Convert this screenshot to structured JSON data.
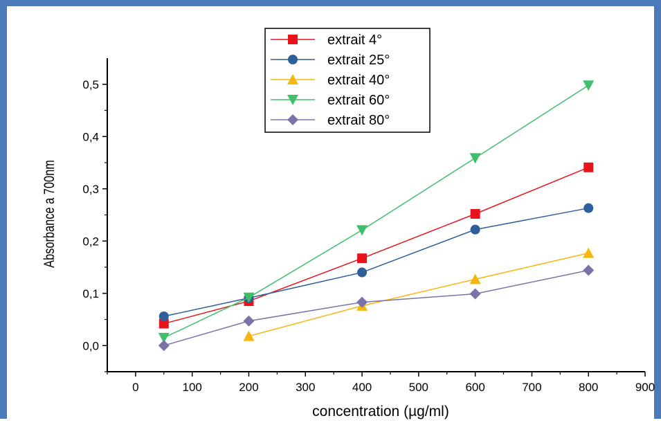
{
  "chart_data": {
    "type": "line",
    "title": "",
    "xlabel": "concentration (µg/ml)",
    "ylabel": "Absorbance a 700nm",
    "xlim": [
      -50,
      900
    ],
    "ylim": [
      -0.05,
      0.55
    ],
    "xticks": [
      0,
      100,
      200,
      300,
      400,
      500,
      600,
      700,
      800,
      900
    ],
    "xtick_labels": [
      "0",
      "100",
      "200",
      "300",
      "400",
      "500",
      "600",
      "700",
      "800",
      "900"
    ],
    "yticks": [
      0,
      0.1,
      0.2,
      0.3,
      0.4,
      0.5
    ],
    "ytick_labels": [
      "0,0",
      "0,1",
      "0,2",
      "0,3",
      "0,4",
      "0,5"
    ],
    "grid": false,
    "legend_position": "top-center",
    "series": [
      {
        "name": "extrait 4°",
        "color": "#e8141c",
        "marker": "square",
        "x": [
          50,
          200,
          400,
          600,
          800
        ],
        "y": [
          0.042,
          0.085,
          0.167,
          0.252,
          0.341
        ]
      },
      {
        "name": "extrait 25°",
        "color": "#2f5f9a",
        "marker": "circle",
        "x": [
          50,
          200,
          400,
          600,
          800
        ],
        "y": [
          0.056,
          0.091,
          0.14,
          0.222,
          0.263
        ]
      },
      {
        "name": "extrait 40°",
        "color": "#f5b70e",
        "marker": "triangle-up",
        "x": [
          200,
          400,
          600,
          800
        ],
        "y": [
          0.018,
          0.076,
          0.127,
          0.177
        ]
      },
      {
        "name": "extrait 60°",
        "color": "#3fbf6a",
        "marker": "triangle-down",
        "x": [
          50,
          200,
          400,
          600,
          800
        ],
        "y": [
          0.015,
          0.092,
          0.221,
          0.359,
          0.498
        ]
      },
      {
        "name": "extrait 80°",
        "color": "#7b72aa",
        "marker": "diamond",
        "x": [
          50,
          200,
          400,
          600,
          800
        ],
        "y": [
          0.0,
          0.047,
          0.083,
          0.099,
          0.144
        ]
      }
    ]
  }
}
